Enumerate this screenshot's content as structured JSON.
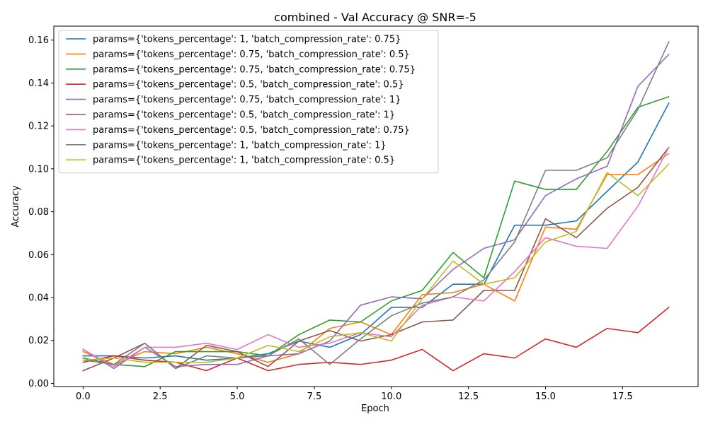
{
  "chart_data": {
    "type": "line",
    "title": "combined - Val Accuracy @ SNR=-5",
    "xlabel": "Epoch",
    "ylabel": "Accuracy",
    "xlim": [
      -0.95,
      19.95
    ],
    "ylim": [
      -0.0015,
      0.1665
    ],
    "xticks": [
      0.0,
      2.5,
      5.0,
      7.5,
      10.0,
      12.5,
      15.0,
      17.5
    ],
    "xtick_labels": [
      "0.0",
      "2.5",
      "5.0",
      "7.5",
      "10.0",
      "12.5",
      "15.0",
      "17.5"
    ],
    "yticks": [
      0.0,
      0.02,
      0.04,
      0.06,
      0.08,
      0.1,
      0.12,
      0.14,
      0.16
    ],
    "ytick_labels": [
      "0.00",
      "0.02",
      "0.04",
      "0.06",
      "0.08",
      "0.10",
      "0.12",
      "0.14",
      "0.16"
    ],
    "grid": false,
    "legend_position": "top-left",
    "x": [
      0,
      1,
      2,
      3,
      4,
      5,
      6,
      7,
      8,
      9,
      10,
      11,
      12,
      13,
      14,
      15,
      16,
      17,
      18,
      19
    ],
    "series": [
      {
        "name": "params={'tokens_percentage': 1, 'batch_compression_rate': 0.75}",
        "color": "#1f77b4",
        "values": [
          0.0128,
          0.0128,
          0.0118,
          0.0128,
          0.0108,
          0.0118,
          0.0138,
          0.0197,
          0.0168,
          0.0227,
          0.0354,
          0.0354,
          0.0462,
          0.0462,
          0.0737,
          0.0737,
          0.0757,
          0.0895,
          0.1032,
          0.1306
        ]
      },
      {
        "name": "params={'tokens_percentage': 0.75, 'batch_compression_rate': 0.5}",
        "color": "#ff7f0e",
        "values": [
          0.0148,
          0.0088,
          0.0148,
          0.0138,
          0.0168,
          0.0138,
          0.0098,
          0.0138,
          0.0256,
          0.0286,
          0.0227,
          0.0413,
          0.0423,
          0.0462,
          0.0384,
          0.0728,
          0.0718,
          0.0973,
          0.0973,
          0.1071
        ]
      },
      {
        "name": "params={'tokens_percentage': 0.75, 'batch_compression_rate': 0.75}",
        "color": "#2ca02c",
        "values": [
          0.0118,
          0.0088,
          0.0078,
          0.0148,
          0.0148,
          0.0148,
          0.0128,
          0.0227,
          0.0295,
          0.0286,
          0.0384,
          0.0433,
          0.061,
          0.0492,
          0.0943,
          0.0904,
          0.0904,
          0.1081,
          0.1287,
          0.1336
        ]
      },
      {
        "name": "params={'tokens_percentage': 0.5, 'batch_compression_rate': 0.5}",
        "color": "#d62728",
        "values": [
          0.0098,
          0.0128,
          0.0108,
          0.0098,
          0.0059,
          0.0118,
          0.0059,
          0.0088,
          0.0098,
          0.0088,
          0.0108,
          0.0158,
          0.0059,
          0.0138,
          0.0118,
          0.0207,
          0.0168,
          0.0256,
          0.0236,
          0.0354
        ]
      },
      {
        "name": "params={'tokens_percentage': 0.75, 'batch_compression_rate': 1}",
        "color": "#9467bd",
        "values": [
          0.0158,
          0.0069,
          0.0168,
          0.0078,
          0.0088,
          0.0088,
          0.0128,
          0.0138,
          0.0197,
          0.0364,
          0.0403,
          0.0394,
          0.0531,
          0.0629,
          0.0669,
          0.0875,
          0.0953,
          0.1012,
          0.1385,
          0.1533
        ]
      },
      {
        "name": "params={'tokens_percentage': 0.5, 'batch_compression_rate': 1}",
        "color": "#8c564b",
        "values": [
          0.0059,
          0.0118,
          0.0187,
          0.0069,
          0.0177,
          0.0148,
          0.0078,
          0.0197,
          0.0246,
          0.0197,
          0.0227,
          0.0286,
          0.0295,
          0.0433,
          0.0433,
          0.0767,
          0.0679,
          0.0816,
          0.0914,
          0.11
        ]
      },
      {
        "name": "params={'tokens_percentage': 0.5, 'batch_compression_rate': 0.75}",
        "color": "#e377c2",
        "values": [
          0.0158,
          0.0078,
          0.0168,
          0.0168,
          0.0187,
          0.0158,
          0.0227,
          0.0168,
          0.0187,
          0.0236,
          0.0217,
          0.0364,
          0.0403,
          0.0384,
          0.0521,
          0.0679,
          0.0639,
          0.0629,
          0.0826,
          0.11
        ]
      },
      {
        "name": "params={'tokens_percentage': 1, 'batch_compression_rate': 1}",
        "color": "#7f7f7f",
        "values": [
          0.0108,
          0.0088,
          0.0187,
          0.0069,
          0.0128,
          0.0118,
          0.0128,
          0.0207,
          0.0088,
          0.0207,
          0.0315,
          0.0374,
          0.0403,
          0.0482,
          0.0659,
          0.0993,
          0.0993,
          0.1051,
          0.1277,
          0.1592
        ]
      },
      {
        "name": "params={'tokens_percentage': 1, 'batch_compression_rate': 0.5}",
        "color": "#bcbd22",
        "values": [
          0.0108,
          0.0118,
          0.0098,
          0.0098,
          0.0098,
          0.0118,
          0.0177,
          0.0148,
          0.0217,
          0.0236,
          0.0197,
          0.0394,
          0.057,
          0.0462,
          0.0492,
          0.0659,
          0.0708,
          0.0983,
          0.0875,
          0.1022
        ]
      }
    ]
  }
}
